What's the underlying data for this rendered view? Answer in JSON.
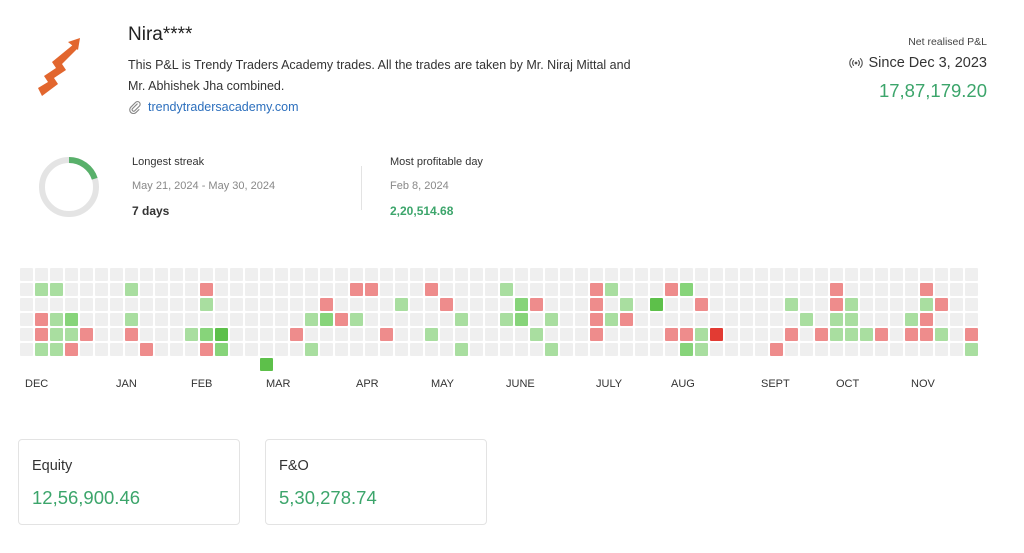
{
  "profile": {
    "name": "Nira****",
    "bio": "This P&L is Trendy Traders Academy trades. All the trades are taken by Mr. Niraj Mittal and Mr. Abhishek Jha combined.",
    "link_text": "trendytradersacademy.com",
    "logo_icon": "trading-arrow-logo-icon",
    "link_icon": "paperclip-icon"
  },
  "summary": {
    "net_label": "Net realised P&L",
    "since_text": "Since Dec 3, 2023",
    "since_icon": "live-broadcast-icon",
    "net_value": "17,87,179.20"
  },
  "streak": {
    "label": "Longest streak",
    "range": "May 21, 2024 - May 30, 2024",
    "value": "7 days",
    "ring_fraction": 0.2
  },
  "best_day": {
    "label": "Most profitable day",
    "date": "Feb 8, 2024",
    "value": "2,20,514.68"
  },
  "heatmap": {
    "months": [
      "DEC",
      "JAN",
      "FEB",
      "MAR",
      "APR",
      "MAY",
      "JUNE",
      "JULY",
      "AUG",
      "SEPT",
      "OCT",
      "NOV"
    ],
    "colors": {
      "empty": "#efefef",
      "profit_light": "#a9dea0",
      "profit": "#87d47a",
      "profit_dark": "#5dc04a",
      "loss": "#ee8c8c",
      "loss_dark": "#e23b33"
    }
  },
  "cards": [
    {
      "title": "Equity",
      "value": "12,56,900.46"
    },
    {
      "title": "F&O",
      "value": "5,30,278.74"
    }
  ],
  "colors": {
    "accent_green": "#3ca56b",
    "link_blue": "#2c6fbd"
  }
}
